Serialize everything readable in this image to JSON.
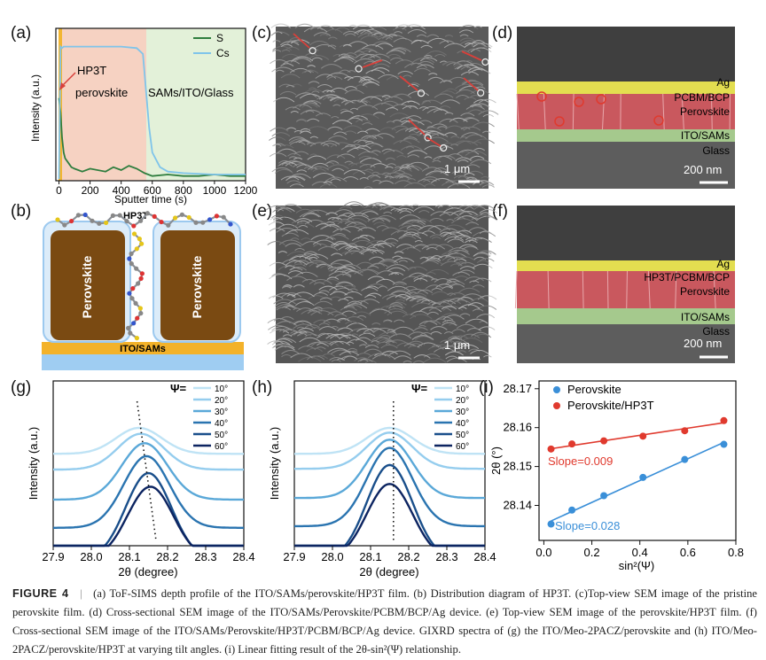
{
  "panel_labels": [
    "(a)",
    "(b)",
    "(c)",
    "(d)",
    "(e)",
    "(f)",
    "(g)",
    "(h)",
    "(i)"
  ],
  "sem_labels": {
    "c_scale": "1 μm",
    "e_scale": "1 μm",
    "d_layers": [
      "Ag",
      "PCBM/BCP",
      "Perovskite",
      "ITO/SAMs",
      "Glass"
    ],
    "d_scale": "200 nm",
    "f_layers": [
      "Ag",
      "HP3T/PCBM/BCP",
      "Perovskite",
      "ITO/SAMs",
      "Glass"
    ],
    "f_scale": "200 nm"
  },
  "diagram_b": {
    "molecule": "HP3T",
    "blocks": [
      "Perovskite",
      "Perovskite"
    ],
    "substrate": "ITO/SAMs"
  },
  "caption": {
    "figure_label": "FIGURE 4",
    "separator": "|",
    "text": "(a) ToF-SIMS depth profile of the ITO/SAMs/perovskite/HP3T film. (b) Distribution diagram of HP3T. (c)Top-view SEM image of the pristine perovskite film. (d) Cross-sectional SEM image of the ITO/SAMs/Perovskite/PCBM/BCP/Ag device. (e) Top-view SEM image of the perovskite/HP3T film. (f) Cross-sectional SEM image of the ITO/SAMs/Perovskite/HP3T/PCBM/BCP/Ag device.   GIXRD spectra of (g) the ITO/Meo-2PACZ/perovskite and (h) ITO/Meo-2PACZ/perovskite/HP3T at varying tilt angles. (i) Linear fitting result of the 2θ-sin²(Ψ) relationship."
  },
  "chart_data": [
    {
      "id": "a",
      "type": "line",
      "xlabel": "Sputter time (s)",
      "ylabel": "Intensity (a.u.)",
      "xlim": [
        -20,
        1200
      ],
      "xticks": [
        0,
        200,
        400,
        600,
        800,
        1000,
        1200
      ],
      "regions": [
        "HP3T",
        "perovskite",
        "SAMs/ITO/Glass"
      ],
      "series": [
        {
          "name": "S",
          "color": "#2e7d3e",
          "x": [
            0,
            10,
            20,
            30,
            40,
            60,
            80,
            100,
            150,
            200,
            300,
            350,
            400,
            450,
            500,
            550,
            600,
            700,
            800,
            900,
            1000,
            1100,
            1200
          ],
          "y": [
            0.55,
            0.45,
            0.28,
            0.18,
            0.14,
            0.11,
            0.08,
            0.07,
            0.05,
            0.07,
            0.05,
            0.08,
            0.06,
            0.09,
            0.07,
            0.04,
            0.02,
            0.03,
            0.02,
            0.02,
            0.03,
            0.02,
            0.02
          ]
        },
        {
          "name": "Cs",
          "color": "#7fc4ea",
          "x": [
            0,
            10,
            20,
            30,
            100,
            200,
            300,
            400,
            500,
            540,
            560,
            580,
            600,
            650,
            700,
            800,
            1000,
            1200
          ],
          "y": [
            0.0,
            0.9,
            0.89,
            0.9,
            0.9,
            0.9,
            0.9,
            0.9,
            0.89,
            0.85,
            0.6,
            0.35,
            0.18,
            0.08,
            0.05,
            0.04,
            0.03,
            0.03
          ]
        }
      ]
    },
    {
      "id": "g",
      "type": "line",
      "xlabel": "2θ (degree)",
      "ylabel": "Intensity (a.u.)",
      "xlim": [
        27.9,
        28.4
      ],
      "xticks": [
        "27.9",
        "28.0",
        "28.1",
        "28.2",
        "28.3",
        "28.4"
      ],
      "legend_title": "Ψ=",
      "series": [
        {
          "name": "10°",
          "color": "#bfe3f5",
          "center": 28.125,
          "height": 1.0,
          "base": 0.78
        },
        {
          "name": "20°",
          "color": "#95cdee",
          "center": 28.13,
          "height": 0.95,
          "base": 0.68
        },
        {
          "name": "30°",
          "color": "#5aa8d8",
          "center": 28.14,
          "height": 0.87,
          "base": 0.45
        },
        {
          "name": "40°",
          "color": "#2a74b0",
          "center": 28.145,
          "height": 0.76,
          "base": 0.2
        },
        {
          "name": "50°",
          "color": "#194e8a",
          "center": 28.15,
          "height": 0.64,
          "base": 0.0
        },
        {
          "name": "60°",
          "color": "#0c2461",
          "center": 28.155,
          "height": 0.54,
          "base": 0.0
        }
      ]
    },
    {
      "id": "h",
      "type": "line",
      "xlabel": "2θ (degree)",
      "ylabel": "Intensity (a.u.)",
      "xlim": [
        27.9,
        28.4
      ],
      "xticks": [
        "27.9",
        "28.0",
        "28.1",
        "28.2",
        "28.3",
        "28.4"
      ],
      "legend_title": "Ψ=",
      "series": [
        {
          "name": "10°",
          "color": "#bfe3f5",
          "center": 28.15,
          "height": 1.0,
          "base": 0.78
        },
        {
          "name": "20°",
          "color": "#95cdee",
          "center": 28.15,
          "height": 0.96,
          "base": 0.68
        },
        {
          "name": "30°",
          "color": "#5aa8d8",
          "center": 28.15,
          "height": 0.9,
          "base": 0.45
        },
        {
          "name": "40°",
          "color": "#2a74b0",
          "center": 28.15,
          "height": 0.83,
          "base": 0.2
        },
        {
          "name": "50°",
          "color": "#194e8a",
          "center": 28.15,
          "height": 0.7,
          "base": 0.0
        },
        {
          "name": "60°",
          "color": "#0c2461",
          "center": 28.15,
          "height": 0.56,
          "base": 0.0
        }
      ]
    },
    {
      "id": "i",
      "type": "scatter",
      "xlabel": "sin²(Ψ)",
      "ylabel": "2θ (°)",
      "xlim": [
        -0.02,
        0.8
      ],
      "ylim": [
        28.131,
        28.172
      ],
      "xticks": [
        "0.0",
        "0.2",
        "0.4",
        "0.6",
        "0.8"
      ],
      "yticks": [
        "28.14",
        "28.15",
        "28.16",
        "28.17"
      ],
      "series": [
        {
          "name": "Perovskite",
          "color": "#3a8fd8",
          "x": [
            0.03,
            0.117,
            0.25,
            0.413,
            0.587,
            0.75
          ],
          "y": [
            28.1352,
            28.1388,
            28.1425,
            28.1472,
            28.1518,
            28.1557
          ],
          "slope_label": "Slope=0.028"
        },
        {
          "name": "Perovskite/HP3T",
          "color": "#e03a2e",
          "x": [
            0.03,
            0.117,
            0.25,
            0.413,
            0.587,
            0.75
          ],
          "y": [
            28.1545,
            28.1558,
            28.1566,
            28.1578,
            28.1592,
            28.1618
          ],
          "slope_label": "Slope=0.009"
        }
      ]
    }
  ]
}
